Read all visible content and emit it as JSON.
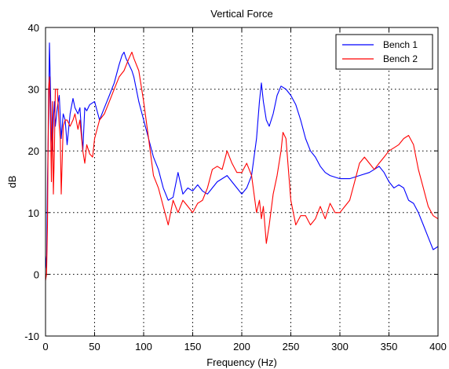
{
  "chart_data": {
    "type": "line",
    "title": "Vertical Force",
    "xlabel": "Frequency (Hz)",
    "ylabel": "dB",
    "xlim": [
      0,
      400
    ],
    "ylim": [
      -10,
      40
    ],
    "x_ticks": [
      0,
      50,
      100,
      150,
      200,
      250,
      300,
      350,
      400
    ],
    "y_ticks": [
      -10,
      0,
      10,
      20,
      30,
      40
    ],
    "grid": true,
    "legend_position": "top-right",
    "series": [
      {
        "name": "Bench 1",
        "color": "#0000ff",
        "x": [
          0,
          1,
          2,
          3,
          4,
          5,
          6,
          7,
          8,
          9,
          10,
          12,
          14,
          16,
          18,
          20,
          22,
          25,
          28,
          30,
          33,
          35,
          38,
          40,
          42,
          45,
          50,
          55,
          60,
          65,
          70,
          75,
          78,
          80,
          82,
          85,
          88,
          90,
          95,
          100,
          105,
          110,
          115,
          120,
          125,
          130,
          135,
          140,
          145,
          150,
          155,
          160,
          165,
          170,
          175,
          180,
          185,
          190,
          195,
          200,
          205,
          210,
          215,
          218,
          220,
          222,
          225,
          228,
          232,
          236,
          240,
          245,
          250,
          255,
          260,
          265,
          270,
          275,
          280,
          285,
          290,
          300,
          310,
          320,
          330,
          335,
          340,
          345,
          350,
          355,
          360,
          365,
          370,
          375,
          380,
          385,
          390,
          395,
          400
        ],
        "values": [
          3,
          1,
          15,
          25,
          37.5,
          30,
          22,
          20,
          25,
          28,
          24,
          27,
          29,
          22,
          26,
          25,
          21,
          26,
          28.5,
          27,
          26,
          27,
          20,
          27,
          26.5,
          27.5,
          28,
          25,
          27,
          29,
          31,
          34,
          35.5,
          36,
          35,
          34,
          33,
          32,
          28,
          25,
          22,
          19,
          17,
          14,
          12,
          12.5,
          16.5,
          13,
          14,
          13.5,
          14.5,
          13.5,
          13,
          14,
          15,
          15.5,
          16,
          15,
          14,
          13,
          14,
          16,
          22,
          28,
          31,
          28,
          25,
          24,
          26,
          29,
          30.5,
          30,
          29,
          27.5,
          25,
          22,
          20,
          19,
          17.5,
          16.5,
          16,
          15.5,
          15.5,
          16,
          16.5,
          17,
          17.5,
          16.5,
          15,
          14,
          14.5,
          14,
          12,
          11.5,
          10,
          8,
          6,
          4,
          4.5
        ]
      },
      {
        "name": "Bench 2",
        "color": "#ff0000",
        "x": [
          0,
          1,
          2,
          3,
          4,
          5,
          6,
          7,
          8,
          9,
          10,
          12,
          14,
          15,
          16,
          18,
          20,
          22,
          25,
          28,
          30,
          33,
          35,
          38,
          40,
          42,
          45,
          48,
          50,
          55,
          60,
          65,
          70,
          75,
          80,
          85,
          88,
          90,
          95,
          100,
          105,
          110,
          115,
          120,
          125,
          130,
          135,
          140,
          145,
          150,
          155,
          160,
          165,
          170,
          175,
          180,
          185,
          190,
          195,
          200,
          205,
          210,
          215,
          218,
          220,
          222,
          225,
          228,
          232,
          236,
          240,
          242,
          245,
          250,
          255,
          260,
          265,
          270,
          275,
          280,
          285,
          290,
          295,
          300,
          305,
          310,
          315,
          320,
          325,
          330,
          335,
          340,
          345,
          350,
          355,
          360,
          365,
          370,
          375,
          380,
          385,
          390,
          395,
          400
        ],
        "values": [
          -1,
          0,
          8,
          30,
          32,
          25,
          15,
          28,
          13,
          20,
          30,
          30,
          24,
          22,
          13,
          24,
          25,
          25,
          24,
          25,
          26,
          23.5,
          25,
          20,
          18,
          21,
          19.5,
          19,
          22,
          25,
          26,
          28,
          30,
          32,
          33,
          35,
          36,
          35,
          33,
          28,
          22,
          16,
          14,
          11,
          8,
          12,
          10,
          12,
          11,
          10,
          11.5,
          12,
          14,
          17,
          17.5,
          17,
          20,
          18,
          16.5,
          16.5,
          18,
          16,
          10,
          12,
          9,
          11,
          5,
          8,
          13,
          16,
          20,
          23,
          22,
          12,
          8,
          9.5,
          9.5,
          8,
          9,
          11,
          9,
          11.5,
          10,
          10,
          11,
          12,
          15,
          18,
          19,
          18,
          17,
          18,
          19,
          20,
          20.5,
          21,
          22,
          22.5,
          21,
          17,
          14,
          11,
          9.5,
          9
        ]
      }
    ]
  }
}
